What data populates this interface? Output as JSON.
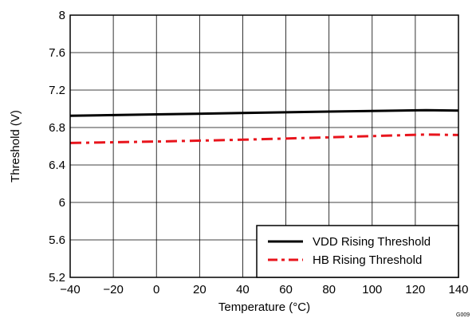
{
  "chart_data": {
    "type": "line",
    "title": "",
    "xlabel": "Temperature (°C)",
    "ylabel": "Threshold (V)",
    "xlim": [
      -40,
      140
    ],
    "ylim": [
      5.2,
      8
    ],
    "xticks": [
      -40,
      -20,
      0,
      20,
      40,
      60,
      80,
      100,
      120,
      140
    ],
    "yticks": [
      5.2,
      5.6,
      6,
      6.4,
      6.8,
      7.2,
      7.6,
      8
    ],
    "xtick_labels": [
      "−40",
      "−20",
      "0",
      "20",
      "40",
      "60",
      "80",
      "100",
      "120",
      "140"
    ],
    "ytick_labels": [
      "5.2",
      "5.6",
      "6",
      "6.4",
      "6.8",
      "7.2",
      "7.6",
      "8"
    ],
    "grid": true,
    "legend_position": "bottom-right",
    "series": [
      {
        "name": "VDD Rising Threshold",
        "color": "#000000",
        "style": "solid",
        "x": [
          -40,
          0,
          40,
          80,
          125,
          140
        ],
        "y": [
          6.925,
          6.94,
          6.955,
          6.97,
          6.985,
          6.98
        ]
      },
      {
        "name": "HB Rising Threshold",
        "color": "#e8141c",
        "style": "dash-dot",
        "x": [
          -40,
          0,
          40,
          80,
          125,
          140
        ],
        "y": [
          6.635,
          6.65,
          6.67,
          6.695,
          6.725,
          6.72
        ]
      }
    ],
    "figure_code": "G009"
  }
}
